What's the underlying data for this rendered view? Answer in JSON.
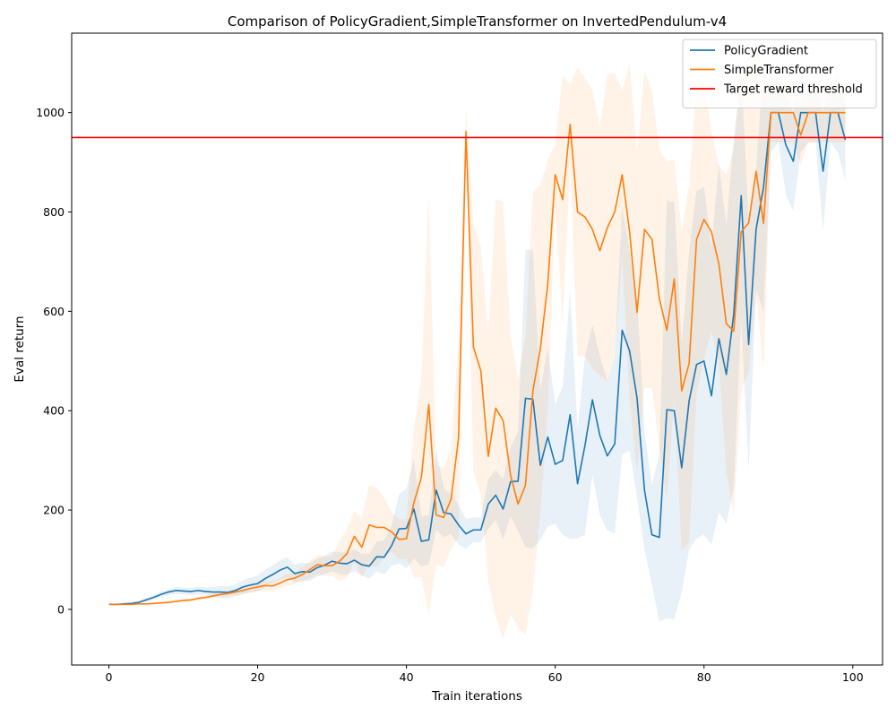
{
  "chart_data": {
    "type": "line",
    "title": "Comparison of PolicyGradient,SimpleTransformer on InvertedPendulum-v4",
    "xlabel": "Train iterations",
    "ylabel": "Eval return",
    "xlim": [
      -5,
      104
    ],
    "ylim": [
      -112,
      1160
    ],
    "xticks": [
      0,
      20,
      40,
      60,
      80,
      100
    ],
    "yticks": [
      0,
      200,
      400,
      600,
      800,
      1000
    ],
    "xtick_labels": [
      "0",
      "20",
      "40",
      "60",
      "80",
      "100"
    ],
    "ytick_labels": [
      "0",
      "200",
      "400",
      "600",
      "800",
      "1000"
    ],
    "legend_position": "top-right",
    "threshold": {
      "name": "Target reward threshold",
      "value": 950,
      "color": "#ff0000"
    },
    "series": [
      {
        "name": "PolicyGradient",
        "color": "#1f77b4",
        "values": [
          10,
          10,
          11,
          12,
          14,
          19,
          24,
          30,
          35,
          38,
          37,
          36,
          38,
          36,
          35,
          35,
          34,
          38,
          45,
          49,
          52,
          62,
          70,
          79,
          85,
          72,
          76,
          75,
          84,
          89,
          97,
          93,
          92,
          99,
          90,
          87,
          106,
          105,
          128,
          162,
          163,
          202,
          137,
          140,
          240,
          195,
          192,
          170,
          152,
          160,
          160,
          212,
          230,
          202,
          257,
          258,
          425,
          423,
          290,
          347,
          292,
          300,
          392,
          253,
          330,
          422,
          350,
          309,
          333,
          562,
          520,
          425,
          240,
          150,
          145,
          402,
          400,
          285,
          420,
          493,
          500,
          430,
          545,
          473,
          595,
          833,
          533,
          765,
          850,
          1000,
          1000,
          935,
          902,
          1000,
          1000,
          1000,
          882,
          1000,
          1000,
          945
        ],
        "spread": [
          2,
          2,
          2,
          3,
          3,
          4,
          5,
          6,
          6,
          7,
          7,
          7,
          8,
          8,
          10,
          12,
          12,
          12,
          14,
          15,
          16,
          18,
          18,
          20,
          20,
          18,
          18,
          18,
          18,
          18,
          20,
          22,
          22,
          22,
          22,
          25,
          30,
          35,
          40,
          70,
          80,
          100,
          50,
          50,
          80,
          50,
          40,
          40,
          30,
          25,
          25,
          50,
          50,
          60,
          70,
          100,
          300,
          300,
          150,
          180,
          120,
          150,
          250,
          110,
          180,
          150,
          160,
          150,
          180,
          250,
          200,
          200,
          120,
          100,
          170,
          420,
          420,
          250,
          300,
          350,
          350,
          300,
          350,
          300,
          350,
          250,
          250,
          120,
          250,
          80,
          60,
          100,
          100,
          80,
          60,
          60,
          120,
          60,
          80,
          80
        ]
      },
      {
        "name": "SimpleTransformer",
        "color": "#ff7f0e",
        "values": [
          10,
          10,
          10,
          10,
          11,
          11,
          12,
          13,
          14,
          16,
          18,
          19,
          22,
          24,
          27,
          30,
          32,
          35,
          38,
          42,
          45,
          48,
          47,
          53,
          60,
          63,
          70,
          80,
          90,
          88,
          88,
          97,
          112,
          147,
          125,
          170,
          165,
          165,
          156,
          141,
          142,
          215,
          265,
          412,
          190,
          185,
          222,
          345,
          962,
          528,
          480,
          308,
          405,
          380,
          270,
          212,
          250,
          440,
          525,
          655,
          875,
          825,
          976,
          800,
          790,
          765,
          722,
          768,
          800,
          875,
          760,
          598,
          765,
          745,
          625,
          562,
          665,
          440,
          495,
          745,
          785,
          760,
          695,
          575,
          560,
          760,
          778,
          882,
          777,
          1000,
          1000,
          1000,
          1000,
          955,
          1000,
          1000,
          1000,
          1000,
          1000,
          1000
        ],
        "spread": [
          1,
          1,
          1,
          1,
          1,
          1,
          2,
          2,
          2,
          2,
          3,
          3,
          4,
          4,
          5,
          5,
          6,
          6,
          7,
          8,
          9,
          10,
          10,
          10,
          12,
          12,
          14,
          18,
          20,
          20,
          20,
          40,
          50,
          50,
          60,
          80,
          80,
          60,
          40,
          40,
          40,
          150,
          200,
          420,
          100,
          100,
          100,
          200,
          50,
          250,
          250,
          250,
          420,
          440,
          280,
          250,
          300,
          400,
          330,
          250,
          60,
          250,
          80,
          290,
          280,
          280,
          250,
          310,
          280,
          170,
          340,
          320,
          320,
          300,
          300,
          340,
          240,
          320,
          360,
          310,
          280,
          200,
          200,
          300,
          370,
          320,
          300,
          250,
          300,
          60,
          60,
          60,
          60,
          60,
          60,
          60,
          60,
          60,
          60,
          60
        ]
      }
    ]
  }
}
